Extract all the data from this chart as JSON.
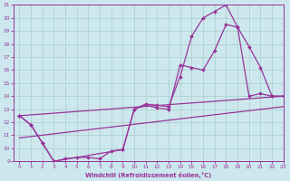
{
  "xlabel": "Windchill (Refroidissement éolien,°C)",
  "bg_color": "#cce8ee",
  "line_color": "#993399",
  "xlim": [
    -0.5,
    23
  ],
  "ylim": [
    9,
    21
  ],
  "xticks": [
    0,
    1,
    2,
    3,
    4,
    5,
    6,
    7,
    8,
    9,
    10,
    11,
    12,
    13,
    14,
    15,
    16,
    17,
    18,
    19,
    20,
    21,
    22,
    23
  ],
  "yticks": [
    9,
    10,
    11,
    12,
    13,
    14,
    15,
    16,
    17,
    18,
    19,
    20,
    21
  ],
  "curve1_x": [
    0,
    1,
    2,
    3,
    4,
    5,
    6,
    7,
    8,
    9,
    10,
    11,
    12,
    13,
    14,
    15,
    16,
    17,
    18,
    19,
    20,
    21,
    22,
    23
  ],
  "curve1_y": [
    12.5,
    11.8,
    10.4,
    9.0,
    9.2,
    9.3,
    9.3,
    9.2,
    9.8,
    9.9,
    13.0,
    13.4,
    13.3,
    13.2,
    15.5,
    18.6,
    20.0,
    20.5,
    21.0,
    19.3,
    14.0,
    14.2,
    14.0,
    14.0
  ],
  "curve2_x": [
    0,
    1,
    2,
    3,
    9,
    10,
    11,
    12,
    13,
    14,
    15,
    16,
    17,
    18,
    19,
    20,
    21,
    22,
    23
  ],
  "curve2_y": [
    12.5,
    11.8,
    10.4,
    9.0,
    9.9,
    13.0,
    13.3,
    13.1,
    13.0,
    16.4,
    16.2,
    16.0,
    17.5,
    19.5,
    19.3,
    17.8,
    16.2,
    14.0,
    14.0
  ],
  "curve3_x": [
    0,
    23
  ],
  "curve3_y": [
    12.5,
    14.0
  ],
  "curve4_x": [
    0,
    23
  ],
  "curve4_y": [
    10.8,
    13.2
  ]
}
